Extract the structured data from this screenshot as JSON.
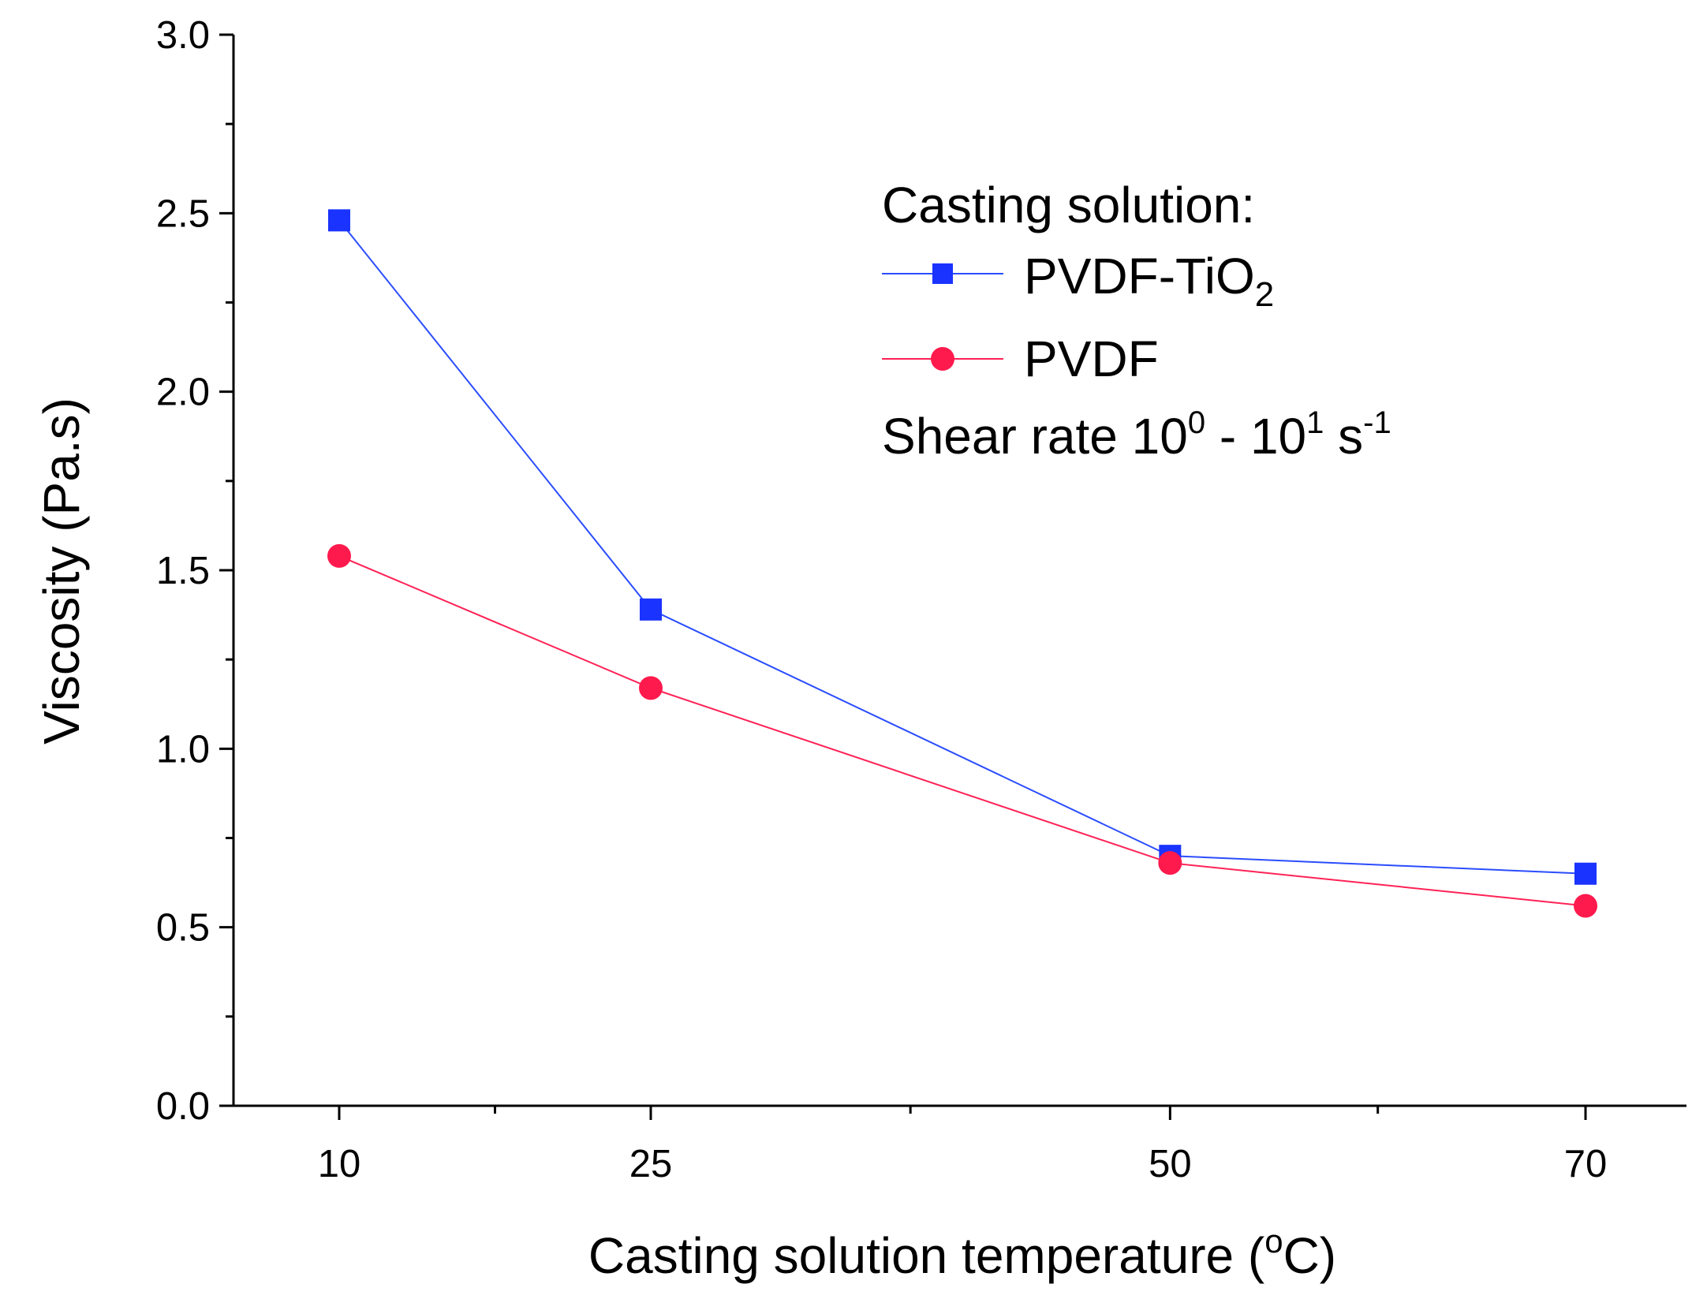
{
  "chart_data": {
    "type": "line",
    "title": "",
    "xlabel": "Casting solution temperature (",
    "xlabel_degree": "o",
    "xlabel_unit": "C)",
    "ylabel": "Viscosity (Pa.s)",
    "xlim": [
      5,
      73
    ],
    "ylim": [
      0.0,
      3.0
    ],
    "x_tick_labels": [
      "10",
      "25",
      "50",
      "70"
    ],
    "x_ticks": [
      10,
      25,
      50,
      70
    ],
    "x_minor_ticks": [
      17.5,
      37.5,
      60
    ],
    "y_ticks": [
      0.0,
      0.5,
      1.0,
      1.5,
      2.0,
      2.5,
      3.0
    ],
    "y_tick_labels": [
      "0.0",
      "0.5",
      "1.0",
      "1.5",
      "2.0",
      "2.5",
      "3.0"
    ],
    "x": [
      10,
      25,
      50,
      70
    ],
    "series": [
      {
        "name": "PVDF-TiO",
        "name_subscript": "2",
        "marker": "square",
        "color": "#1a33ff",
        "line_color": "#2b4dff",
        "values": [
          2.48,
          1.39,
          0.7,
          0.65
        ]
      },
      {
        "name": "PVDF",
        "marker": "circle",
        "color": "#ff1a4d",
        "line_color": "#ff2255",
        "values": [
          1.54,
          1.17,
          0.68,
          0.56
        ]
      }
    ],
    "legend": {
      "title": "Casting solution:",
      "placement": "top-right",
      "note_prefix": "Shear rate 10",
      "note_sup1": "0",
      "note_mid": " - 10",
      "note_sup2": "1",
      "note_unit": " s",
      "note_sup3": "-1"
    }
  }
}
